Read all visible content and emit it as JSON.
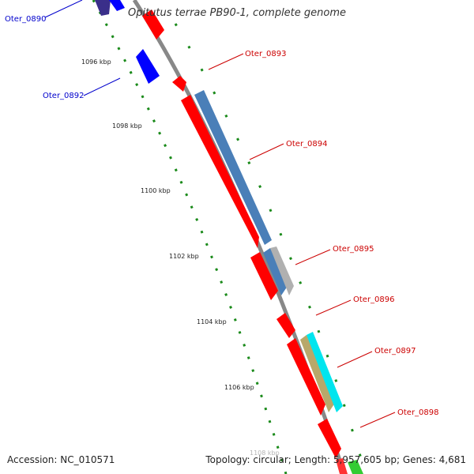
{
  "title": "Opitutus terrae PB90-1, complete genome",
  "accession": "Accession: NC_010571",
  "topology": "Topology: circular; Length: 5,957,605 bp; Genes: 4,681",
  "kbp_ticks": [
    "1096 kbp",
    "1098 kbp",
    "1100 kbp",
    "1102 kbp",
    "1104 kbp",
    "1106 kbp",
    "1108 kbp"
  ],
  "genes": [
    {
      "name": "Oter_0890",
      "strand": "minus"
    },
    {
      "name": "Oter_0892",
      "strand": "minus"
    },
    {
      "name": "Oter_0893",
      "strand": "plus"
    },
    {
      "name": "Oter_0894",
      "strand": "plus"
    },
    {
      "name": "Oter_0895",
      "strand": "plus"
    },
    {
      "name": "Oter_0896",
      "strand": "plus"
    },
    {
      "name": "Oter_0897",
      "strand": "plus"
    },
    {
      "name": "Oter_0898",
      "strand": "plus"
    }
  ],
  "colors": {
    "plus_cds": "#ff0000",
    "minus_cds": "#0000ff",
    "label_plus": "#cc0000",
    "label_minus": "#0000cc",
    "backbone": "#888888",
    "tick": "#1a8a1a"
  }
}
